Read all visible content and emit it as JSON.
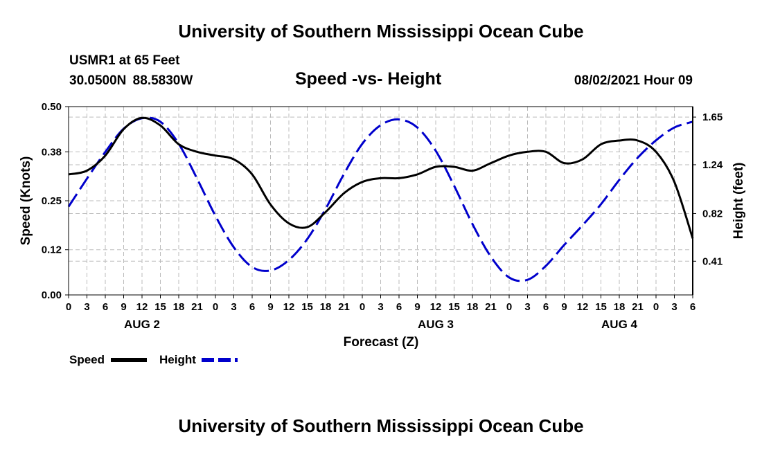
{
  "header": {
    "title": "University of Southern Mississippi Ocean Cube",
    "station": "USMR1 at 65 Feet",
    "coordinates": "30.0500N  88.5830W",
    "chart_title": "Speed -vs- Height",
    "datetime": "08/02/2021 Hour 09"
  },
  "footer": {
    "title": "University of Southern Mississippi Ocean Cube"
  },
  "colors": {
    "speed": "#000000",
    "height": "#0000cc",
    "grid": "#bbbbbb"
  },
  "chart_data": {
    "type": "line",
    "title": "Speed -vs- Height",
    "xlabel": "Forecast (Z)",
    "ylabel": "Speed (Knots)",
    "y2label": "Height (feet)",
    "x_unit": "hours since AUG 2 00Z",
    "xlim": [
      -24,
      78
    ],
    "ylim": [
      0,
      0.5
    ],
    "y2lim": [
      0.12,
      1.74
    ],
    "x_ticks": [
      -24,
      -21,
      -18,
      -15,
      -12,
      -9,
      -6,
      -3,
      0,
      3,
      6,
      9,
      12,
      15,
      18,
      21,
      24,
      27,
      30,
      33,
      36,
      39,
      42,
      45,
      48,
      51,
      54,
      57,
      60,
      63,
      66,
      69,
      72,
      75,
      78
    ],
    "x_tick_labels": [
      "0",
      "3",
      "6",
      "9",
      "12",
      "15",
      "18",
      "21",
      "0",
      "3",
      "6",
      "9",
      "12",
      "15",
      "18",
      "21",
      "0",
      "3",
      "6",
      "9",
      "12",
      "15",
      "18",
      "21",
      "0",
      "3",
      "6",
      "9",
      "12",
      "15",
      "18",
      "21",
      "0",
      "3",
      "6"
    ],
    "day_labels": [
      {
        "x": -12,
        "label": "AUG 2"
      },
      {
        "x": 36,
        "label": "AUG 3"
      },
      {
        "x": 66,
        "label": "AUG 4"
      }
    ],
    "y_ticks": [
      0.0,
      0.12,
      0.25,
      0.38,
      0.5
    ],
    "y_tick_labels": [
      "0.00",
      "0.12",
      "0.25",
      "0.38",
      "0.50"
    ],
    "y2_ticks": [
      0.41,
      0.82,
      1.24,
      1.65
    ],
    "y2_tick_labels": [
      "0.41",
      "0.82",
      "1.24",
      "1.65"
    ],
    "grid": true,
    "legend": [
      {
        "name": "Speed",
        "style": "solid"
      },
      {
        "name": "Height",
        "style": "dashed"
      }
    ],
    "series": [
      {
        "name": "Speed",
        "axis": "left",
        "style": "solid",
        "x": [
          -24,
          -21,
          -18,
          -15,
          -12,
          -9,
          -6,
          -3,
          0,
          3,
          6,
          9,
          12,
          15,
          18,
          21,
          24,
          27,
          30,
          33,
          36,
          39,
          42,
          45,
          48,
          51,
          54,
          57,
          60,
          63,
          66,
          69,
          72,
          75,
          78
        ],
        "values": [
          0.32,
          0.33,
          0.37,
          0.44,
          0.47,
          0.45,
          0.4,
          0.38,
          0.37,
          0.36,
          0.32,
          0.24,
          0.19,
          0.18,
          0.22,
          0.27,
          0.3,
          0.31,
          0.31,
          0.32,
          0.34,
          0.34,
          0.33,
          0.35,
          0.37,
          0.38,
          0.38,
          0.35,
          0.36,
          0.4,
          0.41,
          0.41,
          0.38,
          0.3,
          0.15
        ]
      },
      {
        "name": "Height",
        "axis": "right",
        "style": "dashed",
        "x": [
          -24,
          -21,
          -18,
          -15,
          -12,
          -9,
          -6,
          -3,
          0,
          3,
          6,
          9,
          12,
          15,
          18,
          21,
          24,
          27,
          30,
          33,
          36,
          39,
          42,
          45,
          48,
          51,
          54,
          57,
          60,
          63,
          66,
          69,
          72,
          75,
          78
        ],
        "values": [
          0.88,
          1.12,
          1.35,
          1.55,
          1.64,
          1.61,
          1.42,
          1.12,
          0.8,
          0.53,
          0.36,
          0.33,
          0.42,
          0.6,
          0.86,
          1.16,
          1.42,
          1.58,
          1.63,
          1.56,
          1.36,
          1.06,
          0.73,
          0.45,
          0.27,
          0.25,
          0.37,
          0.55,
          0.72,
          0.9,
          1.11,
          1.3,
          1.45,
          1.56,
          1.61
        ]
      }
    ]
  }
}
